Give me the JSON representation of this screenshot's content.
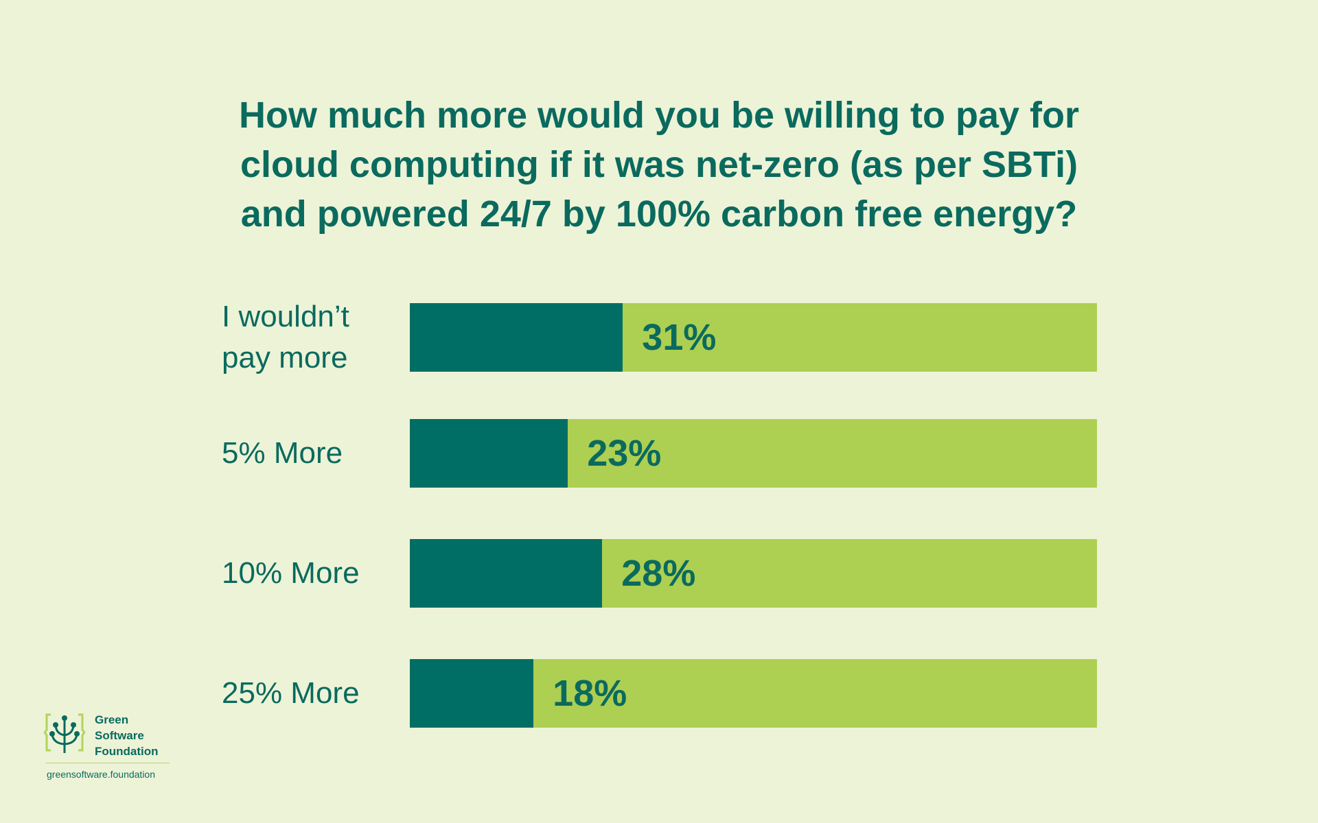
{
  "chart_data": {
    "type": "bar",
    "orientation": "horizontal",
    "stacked_to_100": true,
    "title_lines": [
      "How much more would you be willing to pay for",
      "cloud computing if it was net-zero (as per SBTi)",
      "and powered 24/7 by 100% carbon free energy?"
    ],
    "categories": [
      [
        "I wouldn’t",
        "pay more"
      ],
      [
        "5% More"
      ],
      [
        "10% More"
      ],
      [
        "25% More"
      ]
    ],
    "values": [
      31,
      23,
      28,
      18
    ],
    "value_labels": [
      "31%",
      "23%",
      "28%",
      "18%"
    ],
    "xlim": [
      0,
      100
    ],
    "grid": false,
    "colors": {
      "fill": "#006e64",
      "track": "#adcf52",
      "text": "#0a6a5e",
      "background": "#edf3d7"
    }
  },
  "logo": {
    "name_lines": [
      "Green",
      "Software",
      "Foundation"
    ],
    "url": "greensoftware.foundation",
    "icon": "tree-in-braces-icon"
  }
}
